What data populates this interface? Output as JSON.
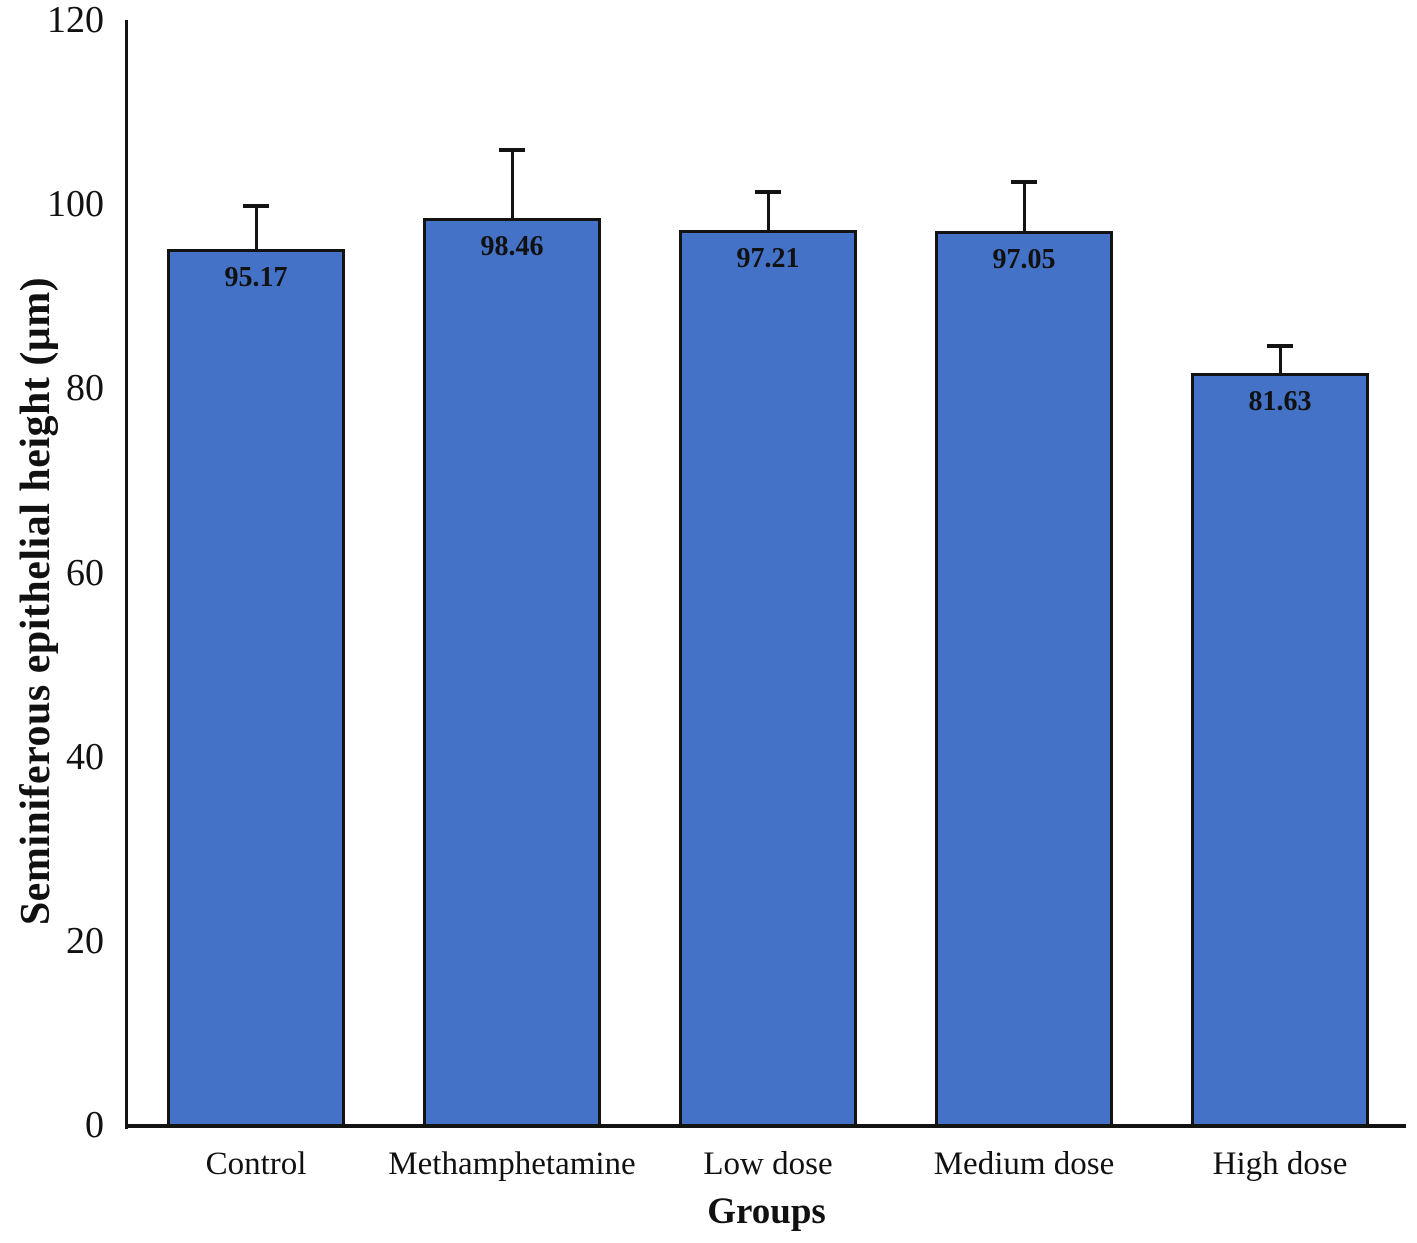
{
  "chart_data": {
    "type": "bar",
    "categories": [
      "Control",
      "Methamphetamine",
      "Low dose",
      "Medium dose",
      "High dose"
    ],
    "values": [
      95.17,
      98.46,
      97.21,
      97.05,
      81.63
    ],
    "value_labels": [
      "95.17",
      "98.46",
      "97.21",
      "97.05",
      "81.63"
    ],
    "errors_upper": [
      4.5,
      7.3,
      4.0,
      5.2,
      2.9
    ],
    "title": "",
    "xlabel": "Groups",
    "ylabel": "Seminiferous epithelial height (μm)",
    "ylim": [
      0,
      120
    ],
    "yticks": [
      0,
      20,
      40,
      60,
      80,
      100,
      120
    ],
    "grid": false,
    "legend": null,
    "error_bars": "upper-only-with-cap",
    "colors": {
      "bar_fill": "#4472C6",
      "bar_border": "#131313",
      "error_bar": "#131313",
      "axis": "#131313",
      "text": "#111111"
    }
  }
}
